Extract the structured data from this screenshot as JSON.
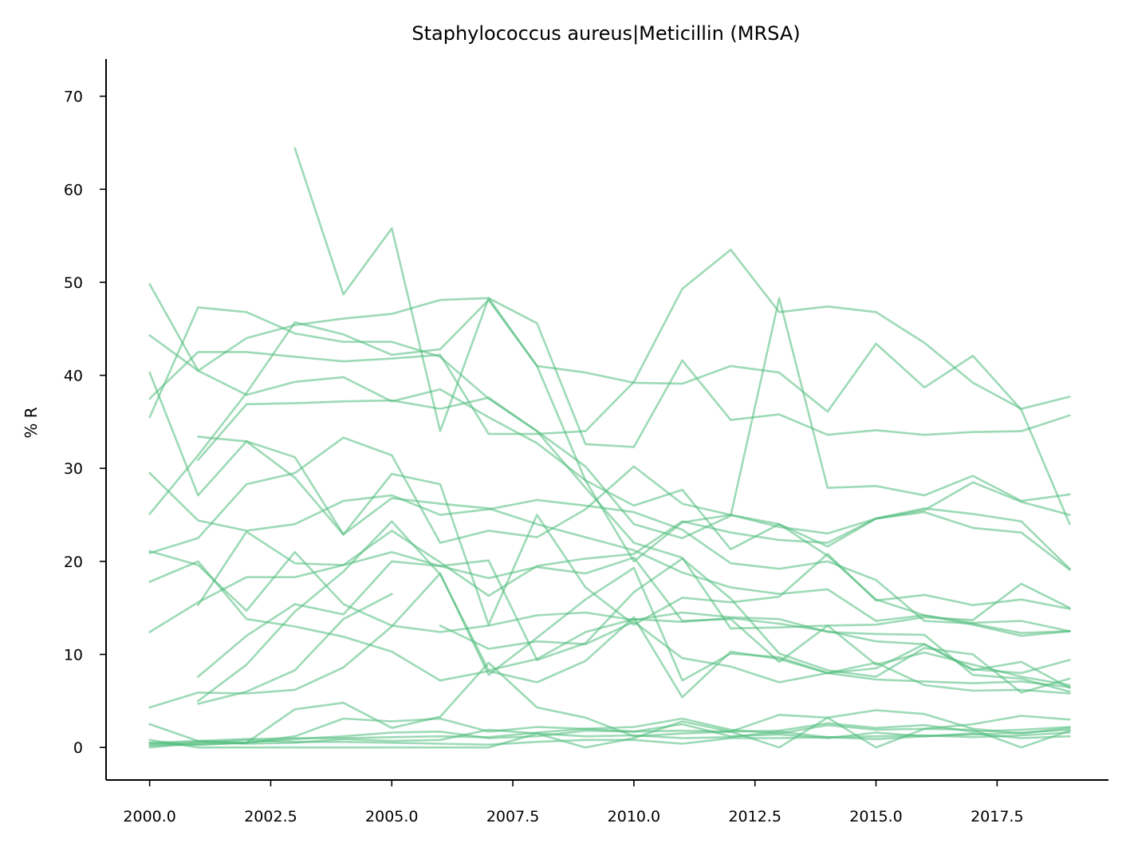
{
  "chart_data": {
    "type": "line",
    "title": "Staphylococcus aureus|Meticillin (MRSA)",
    "xlabel": "",
    "ylabel": "% R",
    "xlim": [
      1999.1,
      2019.8
    ],
    "ylim": [
      -3.5,
      74
    ],
    "xticks": [
      "2000.0",
      "2002.5",
      "2005.0",
      "2007.5",
      "2010.0",
      "2012.5",
      "2015.0",
      "2017.5"
    ],
    "yticks": [
      "0",
      "10",
      "20",
      "30",
      "40",
      "50",
      "60",
      "70"
    ],
    "grid": false,
    "line_color": "#4dbb7a",
    "line_opacity": 0.55,
    "series": [
      {
        "x": [
          2000,
          2001,
          2002,
          2003,
          2004,
          2005,
          2006,
          2007,
          2008,
          2009,
          2010,
          2011,
          2012,
          2013,
          2014,
          2015,
          2016,
          2017,
          2018,
          2019
        ],
        "values": [
          37.5,
          42.5,
          42.5,
          42.0,
          41.5,
          41.8,
          42.2,
          33.7,
          33.7,
          34.0,
          39.3,
          49.3,
          53.5,
          46.8,
          47.4,
          46.8,
          43.5,
          39.2,
          36.4,
          37.7
        ]
      },
      {
        "x": [
          2000,
          2001,
          2002,
          2003,
          2004,
          2005,
          2006,
          2007,
          2008,
          2009,
          2010,
          2011,
          2012,
          2013,
          2014,
          2015,
          2016,
          2017,
          2018,
          2019
        ],
        "values": [
          49.8,
          40.5,
          44.0,
          45.4,
          46.1,
          46.6,
          48.1,
          48.3,
          45.6,
          32.6,
          32.3,
          41.6,
          35.2,
          35.8,
          33.6,
          34.1,
          33.6,
          33.9,
          34.0,
          35.7
        ]
      },
      {
        "x": [
          2000,
          2001,
          2002,
          2003,
          2004,
          2005,
          2006,
          2007,
          2008,
          2009,
          2010,
          2011,
          2012,
          2013,
          2014,
          2015,
          2016,
          2017,
          2018,
          2019
        ],
        "values": [
          40.3,
          27.1,
          32.9,
          29.0,
          22.9,
          29.4,
          28.3,
          13.2,
          25.0,
          17.2,
          13.2,
          16.1,
          15.6,
          16.2,
          20.8,
          15.8,
          16.4,
          15.3,
          15.9,
          14.9
        ]
      },
      {
        "x": [
          2000,
          2001,
          2002,
          2003,
          2004,
          2005,
          2006,
          2007,
          2008,
          2009,
          2010,
          2011,
          2012,
          2013,
          2014,
          2015,
          2016,
          2017,
          2018,
          2019
        ],
        "values": [
          44.3,
          40.5,
          37.9,
          39.3,
          39.8,
          37.2,
          38.5,
          35.5,
          32.7,
          28.7,
          26.0,
          27.7,
          21.3,
          24.0,
          20.6,
          15.9,
          14.2,
          13.4,
          13.6,
          12.5
        ]
      },
      {
        "x": [
          2000,
          2001,
          2002,
          2003,
          2004,
          2005,
          2006,
          2007,
          2008,
          2009,
          2010,
          2011,
          2012,
          2013,
          2014,
          2015,
          2016,
          2017,
          2018,
          2019
        ],
        "values": [
          35.5,
          47.3,
          46.8,
          44.5,
          43.6,
          43.6,
          42.0,
          37.5,
          34.0,
          30.2,
          24.0,
          22.5,
          24.9,
          48.3,
          27.9,
          28.1,
          27.1,
          29.2,
          26.5,
          27.2
        ]
      },
      {
        "x": [
          2001,
          2002,
          2003,
          2004,
          2005,
          2006,
          2007,
          2008,
          2009,
          2010,
          2011,
          2012,
          2013,
          2014,
          2015,
          2016,
          2017,
          2018,
          2019
        ],
        "values": [
          33.4,
          32.9,
          31.2,
          22.9,
          26.8,
          26.2,
          25.7,
          24.0,
          22.6,
          21.2,
          18.8,
          17.2,
          16.5,
          17.0,
          13.6,
          14.2,
          13.2,
          12.0,
          12.5
        ]
      },
      {
        "x": [
          2000,
          2001,
          2002,
          2003,
          2004,
          2005,
          2006,
          2007,
          2008,
          2009,
          2010,
          2011,
          2012,
          2013,
          2014,
          2015,
          2016,
          2017,
          2018,
          2019
        ],
        "values": [
          29.5,
          24.4,
          23.3,
          24.0,
          26.5,
          27.1,
          25.0,
          25.6,
          26.6,
          26.0,
          25.3,
          23.4,
          19.8,
          19.2,
          20.0,
          18.0,
          13.6,
          13.3,
          12.3,
          12.5
        ]
      },
      {
        "x": [
          2000,
          2001,
          2002,
          2003,
          2004,
          2005,
          2006,
          2007,
          2008,
          2009,
          2010,
          2011,
          2012,
          2013,
          2014,
          2015,
          2016,
          2017,
          2018,
          2019
        ],
        "values": [
          25.1,
          31.4,
          38.1,
          45.7,
          44.4,
          42.2,
          42.8,
          48.1,
          41.0,
          40.3,
          39.2,
          39.1,
          41.0,
          40.3,
          36.1,
          43.4,
          38.7,
          42.1,
          36.3,
          24.0
        ]
      },
      {
        "x": [
          2001,
          2002,
          2003,
          2004,
          2005,
          2006,
          2007,
          2008,
          2009,
          2010,
          2011,
          2012,
          2013,
          2014,
          2015,
          2016,
          2017,
          2018,
          2019
        ],
        "values": [
          30.9,
          36.9,
          37.0,
          37.2,
          37.3,
          36.4,
          37.6,
          34.0,
          27.9,
          22.0,
          20.4,
          12.8,
          12.9,
          13.1,
          13.2,
          14.0,
          13.7,
          17.6,
          15.0
        ]
      },
      {
        "x": [
          2003,
          2004,
          2005,
          2006,
          2007,
          2008,
          2009,
          2010,
          2011,
          2012,
          2013,
          2014,
          2015,
          2016,
          2017,
          2018,
          2019
        ],
        "values": [
          64.4,
          48.7,
          55.8,
          34.0,
          48.3,
          41.0,
          28.7,
          20.0,
          24.2,
          25.0,
          24.0,
          21.6,
          24.6,
          25.3,
          23.6,
          23.1,
          19.1
        ]
      },
      {
        "x": [
          2001,
          2002,
          2003,
          2004,
          2005,
          2006,
          2007,
          2008,
          2009,
          2010,
          2011,
          2012,
          2013,
          2014,
          2015,
          2016,
          2017,
          2018,
          2019
        ],
        "values": [
          5.0,
          8.9,
          14.6,
          18.9,
          24.3,
          18.6,
          8.3,
          9.5,
          12.4,
          13.8,
          13.5,
          13.9,
          13.3,
          12.5,
          11.4,
          11.1,
          8.3,
          9.2,
          6.4
        ]
      },
      {
        "x": [
          2000,
          2001,
          2002,
          2003,
          2004,
          2005,
          2006,
          2007,
          2008,
          2009,
          2010,
          2011,
          2012,
          2013,
          2014,
          2015,
          2016,
          2017,
          2018,
          2019
        ],
        "values": [
          20.9,
          22.5,
          28.3,
          29.5,
          33.3,
          31.4,
          22.0,
          23.3,
          22.6,
          25.6,
          30.2,
          26.2,
          25.0,
          23.7,
          23.0,
          24.6,
          25.7,
          25.1,
          24.3,
          19.2
        ]
      },
      {
        "x": [
          2001,
          2002,
          2003,
          2004,
          2005,
          2006,
          2007,
          2008,
          2009,
          2010,
          2011,
          2012,
          2013,
          2014,
          2015,
          2016,
          2017,
          2018,
          2019
        ],
        "values": [
          15.3,
          23.2,
          19.8,
          19.6,
          21.0,
          19.5,
          18.2,
          19.4,
          18.7,
          20.4,
          13.6,
          13.8,
          9.2,
          13.1,
          8.9,
          10.2,
          8.9,
          7.6,
          6.7
        ]
      },
      {
        "x": [
          2000,
          2001,
          2002,
          2003,
          2004,
          2005,
          2006,
          2007,
          2008,
          2009,
          2010,
          2011,
          2012,
          2013,
          2014,
          2015,
          2016,
          2017,
          2018,
          2019
        ],
        "values": [
          17.8,
          20.0,
          13.8,
          13.0,
          11.9,
          10.3,
          7.2,
          8.2,
          7.0,
          9.3,
          14.0,
          5.4,
          10.3,
          9.5,
          8.0,
          8.5,
          11.1,
          8.4,
          8.0,
          9.4
        ]
      },
      {
        "x": [
          2000,
          2001,
          2002,
          2003,
          2004,
          2005,
          2006,
          2007,
          2008,
          2009,
          2010,
          2011,
          2012,
          2013,
          2014,
          2015,
          2016,
          2017,
          2018,
          2019
        ],
        "values": [
          21.1,
          19.6,
          14.7,
          21.0,
          15.4,
          13.1,
          12.4,
          13.1,
          14.2,
          14.5,
          13.7,
          14.5,
          14.0,
          13.8,
          12.4,
          12.2,
          12.1,
          7.8,
          7.4,
          6.0
        ]
      },
      {
        "x": [
          2000,
          2001,
          2002,
          2003,
          2004,
          2005,
          2006,
          2007,
          2008,
          2009,
          2010,
          2011,
          2012,
          2013,
          2014,
          2015,
          2016,
          2017,
          2018,
          2019
        ],
        "values": [
          12.4,
          15.6,
          18.3,
          18.3,
          19.6,
          23.3,
          19.9,
          16.3,
          19.5,
          20.3,
          20.8,
          24.3,
          23.1,
          22.3,
          22.0,
          24.6,
          25.5,
          28.5,
          26.4,
          25.0
        ]
      },
      {
        "x": [
          2001,
          2002,
          2003,
          2004,
          2005
        ],
        "values": [
          4.7,
          6.0,
          8.3,
          13.8,
          16.5
        ]
      },
      {
        "x": [
          2000,
          2001,
          2002,
          2003,
          2004,
          2005,
          2006,
          2007,
          2008,
          2009,
          2010,
          2011,
          2012,
          2013,
          2014,
          2015,
          2016,
          2017,
          2018,
          2019
        ],
        "values": [
          4.3,
          5.9,
          5.8,
          6.2,
          8.6,
          13.0,
          18.7,
          7.8,
          11.8,
          15.9,
          19.3,
          7.2,
          10.1,
          9.7,
          8.0,
          7.3,
          7.1,
          6.9,
          7.1,
          6.5
        ]
      },
      {
        "x": [
          2001,
          2002,
          2003,
          2004,
          2005,
          2006,
          2007,
          2008,
          2009,
          2010,
          2011,
          2012,
          2013,
          2014,
          2015,
          2016,
          2017,
          2018,
          2019
        ],
        "values": [
          7.6,
          12.0,
          15.4,
          14.3,
          20.0,
          19.5,
          20.1,
          9.4,
          11.2,
          16.7,
          20.3,
          16.0,
          10.1,
          8.3,
          7.6,
          10.7,
          10.0,
          5.9,
          7.4
        ]
      },
      {
        "x": [
          2006,
          2007,
          2008,
          2009,
          2010,
          2011,
          2012,
          2013,
          2014,
          2015,
          2016,
          2017,
          2018,
          2019
        ],
        "values": [
          13.1,
          10.6,
          11.4,
          11.1,
          13.5,
          9.6,
          8.7,
          7.0,
          8.0,
          9.1,
          6.7,
          6.1,
          6.2,
          5.8
        ]
      },
      {
        "x": [
          2000,
          2001,
          2002,
          2003,
          2004,
          2005,
          2006,
          2007,
          2008,
          2009,
          2010,
          2011,
          2012,
          2013,
          2014,
          2015,
          2016,
          2017,
          2018,
          2019
        ],
        "values": [
          0.5,
          0.3,
          0.5,
          4.1,
          4.8,
          2.1,
          3.3,
          9.1,
          4.3,
          3.2,
          1.2,
          1.5,
          1.7,
          3.5,
          3.2,
          4.0,
          3.6,
          2.0,
          1.5,
          2.1
        ]
      },
      {
        "x": [
          2000,
          2001,
          2002,
          2003,
          2004,
          2005,
          2006,
          2007,
          2008,
          2009,
          2010,
          2011,
          2012,
          2013,
          2014,
          2015,
          2016,
          2017,
          2018,
          2019
        ],
        "values": [
          2.5,
          0.7,
          0.5,
          1.2,
          3.1,
          2.8,
          3.1,
          1.7,
          2.2,
          2.0,
          2.2,
          3.1,
          1.9,
          1.5,
          2.4,
          1.9,
          2.0,
          2.5,
          3.4,
          3.0
        ]
      },
      {
        "x": [
          2000,
          2001,
          2002,
          2003,
          2004,
          2005,
          2006,
          2007,
          2008,
          2009,
          2010,
          2011,
          2012,
          2013,
          2014,
          2015,
          2016,
          2017,
          2018,
          2019
        ],
        "values": [
          0.8,
          0.0,
          0.0,
          0.0,
          0.0,
          0.0,
          0.0,
          0.0,
          1.5,
          0.0,
          1.0,
          2.8,
          1.7,
          0.0,
          3.2,
          0.0,
          2.0,
          1.9,
          0.0,
          1.8
        ]
      },
      {
        "x": [
          2000,
          2001,
          2002,
          2003,
          2004,
          2005,
          2006,
          2007,
          2008,
          2009,
          2010,
          2011,
          2012,
          2013,
          2014,
          2015,
          2016,
          2017,
          2018,
          2019
        ],
        "values": [
          0.2,
          0.3,
          0.5,
          0.9,
          1.2,
          1.6,
          1.7,
          1.0,
          1.2,
          1.8,
          1.7,
          2.5,
          1.2,
          1.4,
          1.0,
          1.6,
          1.2,
          1.4,
          1.6,
          1.9
        ]
      },
      {
        "x": [
          2000,
          2001,
          2002,
          2003,
          2004,
          2005,
          2006,
          2007,
          2008,
          2009,
          2010,
          2011,
          2012,
          2013,
          2014,
          2015,
          2016,
          2017,
          2018,
          2019
        ],
        "values": [
          0.0,
          0.5,
          0.8,
          0.6,
          0.6,
          0.5,
          0.4,
          0.3,
          0.6,
          0.8,
          0.8,
          0.4,
          1.0,
          1.0,
          1.1,
          1.2,
          1.3,
          1.1,
          1.3,
          1.6
        ]
      },
      {
        "x": [
          2000,
          2001,
          2002,
          2003,
          2004,
          2005,
          2006,
          2007,
          2008,
          2009,
          2010,
          2011,
          2012,
          2013,
          2014,
          2015,
          2016,
          2017,
          2018,
          2019
        ],
        "values": [
          0.5,
          0.7,
          0.9,
          1.0,
          1.0,
          1.1,
          1.2,
          1.1,
          1.6,
          2.0,
          1.7,
          1.8,
          1.7,
          1.8,
          2.6,
          2.1,
          2.4,
          1.7,
          1.9,
          2.2
        ]
      },
      {
        "x": [
          2000,
          2001,
          2002,
          2003,
          2004,
          2005,
          2006,
          2007,
          2008,
          2009,
          2010,
          2011,
          2012,
          2013,
          2014,
          2015,
          2016,
          2017,
          2018,
          2019
        ],
        "values": [
          0.3,
          0.6,
          0.4,
          0.5,
          0.9,
          0.7,
          0.8,
          1.9,
          1.5,
          1.2,
          1.3,
          1.0,
          1.1,
          1.7,
          1.1,
          0.9,
          1.2,
          1.5,
          1.0,
          1.2
        ]
      }
    ]
  }
}
